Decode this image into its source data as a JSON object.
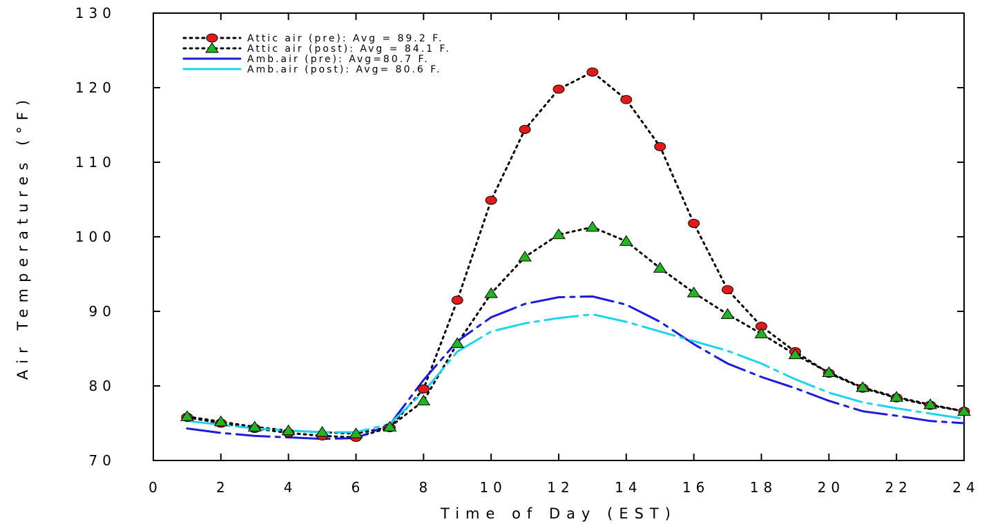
{
  "chart_data": {
    "type": "line",
    "xlabel": "Time of Day (EST)",
    "ylabel": "Air Temperatures (°F)",
    "xlim": [
      0,
      24
    ],
    "ylim": [
      70,
      130
    ],
    "xticks": [
      0,
      2,
      4,
      6,
      8,
      10,
      12,
      14,
      16,
      18,
      20,
      22,
      24
    ],
    "xtick_labels": [
      "0",
      "2",
      "4",
      "6",
      "8",
      "10",
      "12",
      "14",
      "16",
      "18",
      "20",
      "22",
      "24"
    ],
    "yticks": [
      70,
      80,
      90,
      100,
      110,
      120,
      130
    ],
    "ytick_labels": [
      "70",
      "80",
      "90",
      "100",
      "110",
      "120",
      "130"
    ],
    "grid": false,
    "legend_position": "top-left",
    "series": [
      {
        "name": "Attic air (pre): Avg = 89.2 F.",
        "color": "#000000",
        "marker": "circle",
        "marker_color": "#e31a1c",
        "line_style": "dotted",
        "x": [
          1,
          2,
          3,
          4,
          5,
          6,
          7,
          8,
          9,
          10,
          11,
          12,
          13,
          14,
          15,
          16,
          17,
          18,
          19,
          20,
          21,
          22,
          23,
          24
        ],
        "values": [
          75.8,
          75.0,
          74.3,
          73.7,
          73.3,
          73.1,
          74.4,
          79.6,
          91.5,
          104.9,
          114.4,
          119.8,
          122.1,
          118.4,
          112.1,
          101.8,
          92.9,
          88.0,
          84.6,
          81.7,
          79.7,
          78.4,
          77.4,
          76.6
        ]
      },
      {
        "name": "Attic air (post): Avg = 84.1 F.",
        "color": "#000000",
        "marker": "triangle",
        "marker_color": "#22b422",
        "line_style": "dotted",
        "x": [
          1,
          2,
          3,
          4,
          5,
          6,
          7,
          8,
          9,
          10,
          11,
          12,
          13,
          14,
          15,
          16,
          17,
          18,
          19,
          20,
          21,
          22,
          23,
          24
        ],
        "values": [
          75.9,
          75.2,
          74.5,
          74.0,
          73.8,
          73.6,
          74.5,
          78.0,
          85.7,
          92.4,
          97.3,
          100.3,
          101.3,
          99.4,
          95.8,
          92.5,
          89.6,
          87.0,
          84.2,
          81.8,
          79.8,
          78.5,
          77.5,
          76.6
        ]
      },
      {
        "name": "Amb.air (pre): Avg=80.7 F.",
        "color": "#1a1ae0",
        "marker": "none",
        "line_style": "dash-dot",
        "x": [
          1,
          2,
          3,
          4,
          5,
          6,
          7,
          8,
          9,
          10,
          11,
          12,
          13,
          14,
          15,
          16,
          17,
          18,
          19,
          20,
          21,
          22,
          23,
          24
        ],
        "values": [
          74.3,
          73.7,
          73.3,
          73.1,
          72.9,
          73.0,
          74.8,
          80.8,
          86.0,
          89.2,
          91.0,
          91.9,
          92.0,
          90.9,
          88.6,
          85.6,
          83.0,
          81.2,
          79.7,
          78.0,
          76.6,
          76.0,
          75.3,
          75.0
        ]
      },
      {
        "name": "Amb.air (post): Avg= 80.6 F.",
        "color": "#1ad4f0",
        "marker": "none",
        "line_style": "dash-dot",
        "x": [
          1,
          2,
          3,
          4,
          5,
          6,
          7,
          8,
          9,
          10,
          11,
          12,
          13,
          14,
          15,
          16,
          17,
          18,
          19,
          20,
          21,
          22,
          23,
          24
        ],
        "values": [
          75.3,
          74.8,
          74.3,
          74.0,
          73.8,
          73.8,
          74.9,
          79.2,
          84.6,
          87.3,
          88.4,
          89.1,
          89.6,
          88.6,
          87.3,
          86.0,
          84.7,
          83.0,
          80.9,
          79.1,
          77.8,
          77.0,
          76.3,
          75.6
        ]
      }
    ]
  }
}
